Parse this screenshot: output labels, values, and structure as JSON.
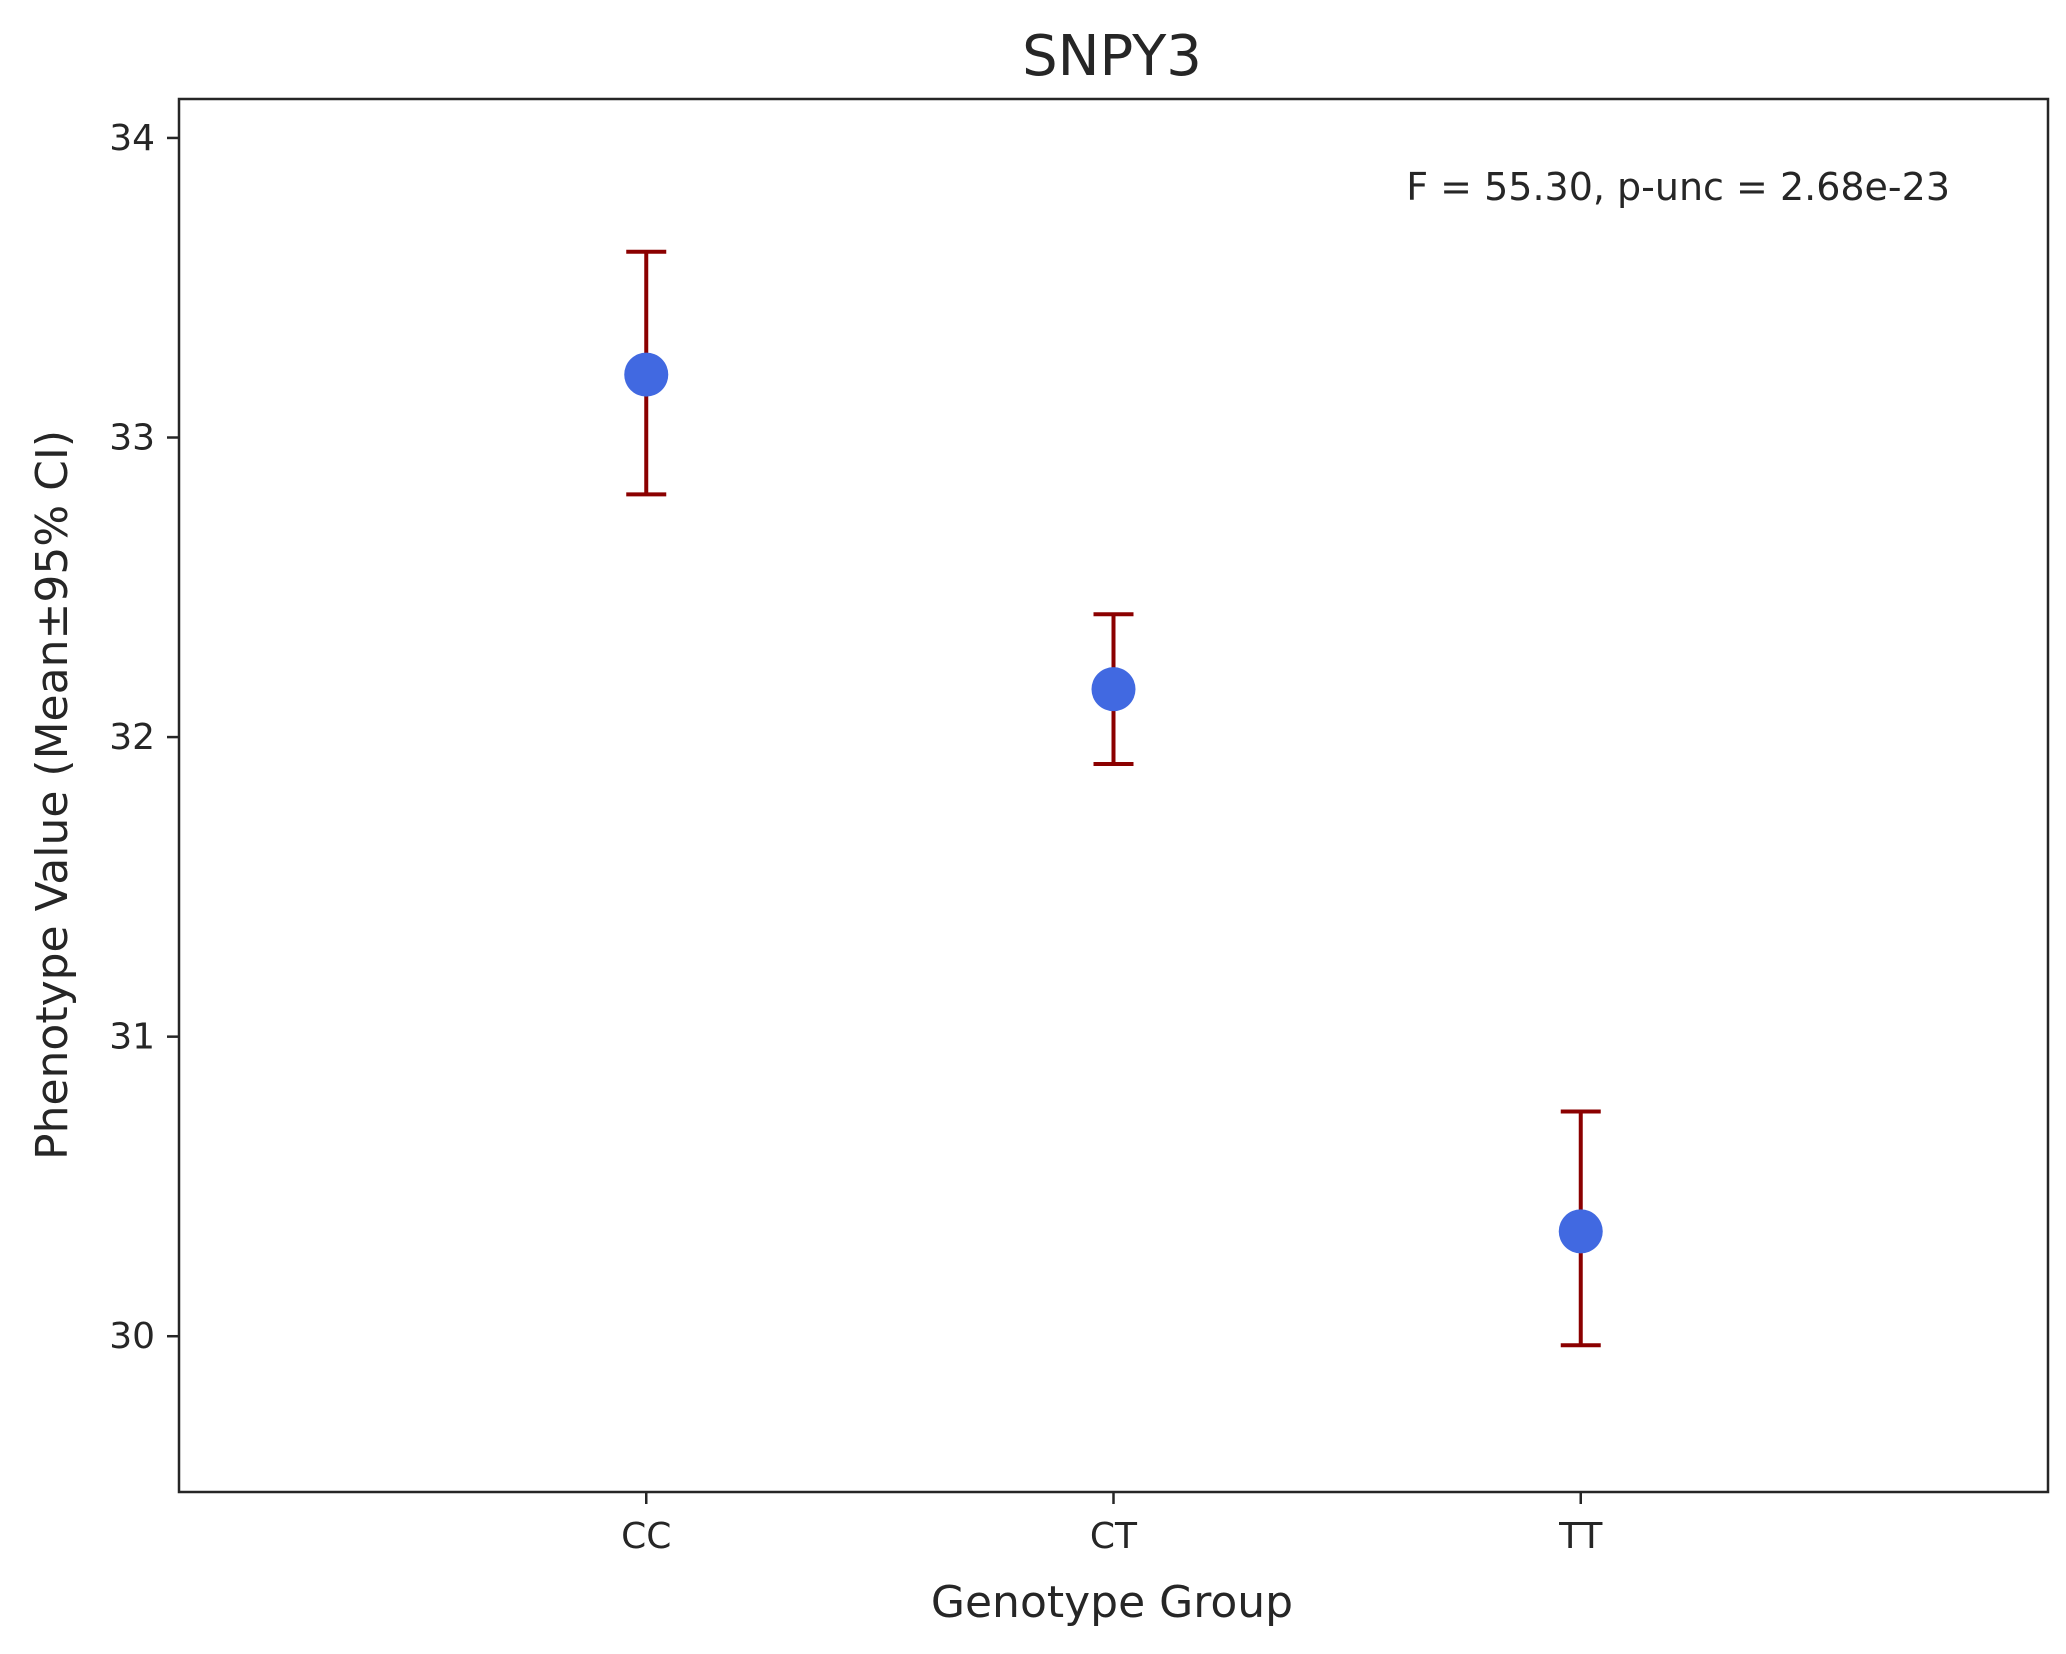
{
  "chart_data": {
    "type": "scatter",
    "title": "SNPY3",
    "xlabel": "Genotype Group",
    "ylabel": "Phenotype Value (Mean±95% CI)",
    "categories": [
      "CC",
      "CT",
      "TT"
    ],
    "series": [
      {
        "mean": [
          33.21,
          32.16,
          30.35
        ],
        "ci_lower": [
          32.81,
          31.91,
          29.97
        ],
        "ci_upper": [
          33.62,
          32.41,
          30.75
        ]
      }
    ],
    "ylim": [
      29.48,
      34.13
    ],
    "yticks": [
      30,
      31,
      32,
      33,
      34
    ],
    "annotation": "F = 55.30, p-unc = 2.68e-23",
    "grid": false,
    "colors": {
      "point": "#4169e1",
      "errorbar": "#8b0000",
      "axes": "#262626"
    }
  }
}
